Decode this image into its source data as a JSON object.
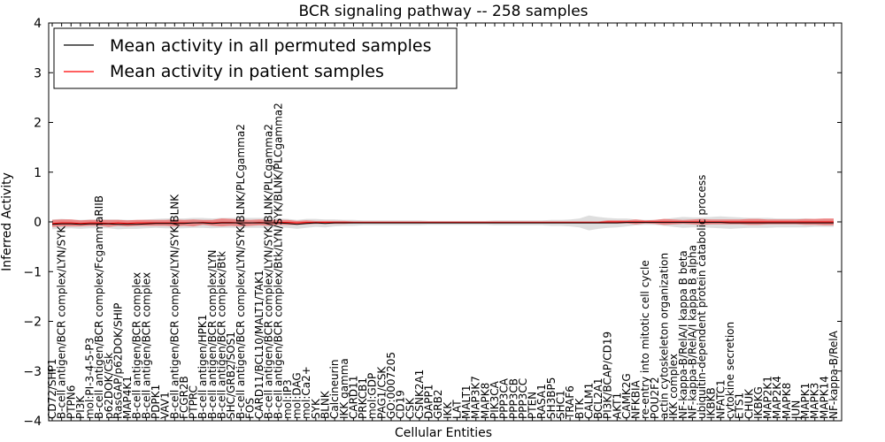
{
  "chart_data": {
    "type": "line",
    "title": "BCR signaling pathway -- 258 samples",
    "xlabel": "Cellular Entities",
    "ylabel": "Inferred Activity",
    "ylim": [
      -4,
      4
    ],
    "yticks": [
      -4,
      -3,
      -2,
      -1,
      0,
      1,
      2,
      3,
      4
    ],
    "grid": false,
    "legend_position": "upper-left",
    "categories": [
      "CD72/SHP1",
      "B-cell antigen/BCR complex/LYN/SYK",
      "PTPN6",
      "PI3K",
      "mol:PI-3-4-5-P3",
      "B-cell antigen/BCR complex/FcgammaRIIB",
      "p62DOK/Csk",
      "RasGAP/p62DOK/SHIP",
      "MAP4K1",
      "B-cell antigen/BCR complex",
      "B-cell antigen/BCR complex",
      "PDPK1",
      "VAV1",
      "B-cell antigen/BCR complex/LYN/SYK/BLNK",
      "FCGR2B",
      "PTPRC",
      "B-cell antigen/HPK1",
      "B-cell antigen/BCR complex/LYN",
      "B-cell antigen/BCR complex/Btk",
      "SHC/GRB2/SOS1",
      "B-cell antigen/BCR complex/LYN/SYK/BLNK/PLCgamma2",
      "FOS",
      "CARD11/BCL10/MALT1/TAK1",
      "B-cell antigen/BCR complex/LYN/SYK/BLNK/PLCgamma2",
      "B-cell antigen/BCR complex/Btk/LYN/SYK/BLNK/PLCgamma2",
      "mol:IP3",
      "mol:DAG",
      "mol:Ca2+",
      "SYK",
      "BLNK",
      "Calcineurin",
      "IKK gamma",
      "CARD11",
      "PRKCB1",
      "mol:GDP",
      "PAG1/CSK",
      "GO:0007205",
      "CD19",
      "CSK",
      "CSNK2A1",
      "DAPP1",
      "GRB2",
      "IKK",
      "LAT",
      "MALT1",
      "MAP3K7",
      "MAPK8",
      "PIK3CA",
      "PPP3CA",
      "PPP3CB",
      "PPP3CC",
      "PTEN",
      "RASA1",
      "SH3BP5",
      "SHC1",
      "TRAF6",
      "BTK",
      "CALM1",
      "BCL2A1",
      "PI3K/BCAP/CD19",
      "AKT1",
      "CAMK2G",
      "NFKBIA",
      "re-entry into mitotic cell cycle",
      "POU2F2",
      "actin cytoskeleton organization",
      "IKK complex",
      "NF-kappa-B/RelA/I kappa B beta",
      "NF-kappa-B/RelA/I kappa B alpha",
      "ubiquitin-dependent protein catabolic process",
      "IKBKB",
      "NFATC1",
      "cytokine secretion",
      "ETS1",
      "CHUK",
      "IKBKG",
      "MAP2K1",
      "MAP2K4",
      "MAPK8",
      "JUN",
      "MAPK1",
      "MAPK3",
      "MAPK14",
      "NF-kappa-B/RelA"
    ],
    "series": [
      {
        "name": "Mean activity in all permuted samples",
        "color": "#000000",
        "values": [
          -0.05,
          -0.04,
          -0.04,
          -0.05,
          -0.04,
          -0.04,
          -0.04,
          -0.05,
          -0.05,
          -0.05,
          -0.04,
          -0.03,
          -0.03,
          -0.03,
          -0.03,
          -0.02,
          -0.02,
          -0.03,
          -0.02,
          -0.02,
          -0.02,
          -0.02,
          -0.02,
          -0.02,
          -0.02,
          -0.03,
          -0.05,
          -0.03,
          -0.02,
          -0.03,
          -0.02,
          -0.02,
          -0.02,
          -0.02,
          -0.02,
          -0.02,
          -0.02,
          -0.02,
          -0.02,
          -0.02,
          -0.02,
          -0.02,
          -0.02,
          -0.02,
          -0.02,
          -0.02,
          -0.02,
          -0.02,
          -0.02,
          -0.02,
          -0.02,
          -0.02,
          -0.02,
          -0.02,
          -0.02,
          -0.02,
          -0.02,
          -0.02,
          -0.02,
          -0.02,
          -0.02,
          -0.01,
          -0.01,
          -0.01,
          -0.01,
          -0.01,
          -0.01,
          -0.01,
          -0.01,
          -0.01,
          -0.01,
          -0.01,
          -0.02,
          -0.02,
          -0.02,
          -0.02,
          -0.02,
          -0.02,
          -0.02,
          -0.02,
          -0.02,
          -0.02,
          -0.02,
          -0.02
        ],
        "band": [
          0.1,
          0.1,
          0.09,
          0.09,
          0.09,
          0.09,
          0.09,
          0.1,
          0.09,
          0.09,
          0.09,
          0.09,
          0.1,
          0.1,
          0.1,
          0.1,
          0.1,
          0.1,
          0.1,
          0.1,
          0.1,
          0.1,
          0.1,
          0.1,
          0.09,
          0.09,
          0.09,
          0.09,
          0.08,
          0.08,
          0.07,
          0.06,
          0.06,
          0.05,
          0.05,
          0.05,
          0.05,
          0.05,
          0.05,
          0.05,
          0.04,
          0.04,
          0.04,
          0.04,
          0.04,
          0.04,
          0.04,
          0.05,
          0.05,
          0.05,
          0.05,
          0.05,
          0.05,
          0.06,
          0.06,
          0.07,
          0.09,
          0.15,
          0.12,
          0.1,
          0.09,
          0.08,
          0.06,
          0.05,
          0.05,
          0.07,
          0.09,
          0.11,
          0.1,
          0.1,
          0.11,
          0.12,
          0.12,
          0.11,
          0.1,
          0.1,
          0.1,
          0.09,
          0.09,
          0.09,
          0.09,
          0.08,
          0.08,
          0.08
        ]
      },
      {
        "name": "Mean activity in patient samples",
        "color": "#ff0000",
        "values": [
          -0.03,
          -0.02,
          -0.02,
          -0.03,
          -0.02,
          -0.02,
          -0.03,
          -0.02,
          -0.03,
          -0.02,
          -0.02,
          -0.02,
          -0.02,
          -0.02,
          -0.02,
          -0.02,
          -0.01,
          -0.02,
          -0.01,
          -0.01,
          -0.02,
          -0.02,
          -0.01,
          -0.02,
          -0.01,
          -0.01,
          -0.02,
          -0.01,
          -0.01,
          -0.01,
          -0.01,
          -0.01,
          -0.01,
          -0.01,
          -0.01,
          -0.01,
          -0.01,
          -0.01,
          -0.01,
          -0.01,
          -0.01,
          -0.01,
          -0.01,
          -0.01,
          -0.01,
          -0.01,
          -0.01,
          -0.01,
          -0.01,
          -0.01,
          -0.01,
          -0.01,
          -0.01,
          -0.01,
          -0.01,
          -0.01,
          -0.01,
          -0.01,
          -0.01,
          0.0,
          0.0,
          0.0,
          0.0,
          0.0,
          0.0,
          0.0,
          0.0,
          0.0,
          0.0,
          0.0,
          0.0,
          0.0,
          0.0,
          0.0,
          0.0,
          0.0,
          0.0,
          0.0,
          0.0,
          0.0,
          0.0,
          0.0,
          0.0,
          0.0
        ],
        "band": [
          0.07,
          0.07,
          0.07,
          0.06,
          0.06,
          0.06,
          0.07,
          0.06,
          0.06,
          0.06,
          0.06,
          0.06,
          0.06,
          0.07,
          0.06,
          0.07,
          0.05,
          0.06,
          0.08,
          0.07,
          0.07,
          0.06,
          0.06,
          0.06,
          0.05,
          0.05,
          0.04,
          0.04,
          0.03,
          0.03,
          0.03,
          0.03,
          0.02,
          0.02,
          0.02,
          0.02,
          0.02,
          0.02,
          0.02,
          0.02,
          0.02,
          0.02,
          0.02,
          0.02,
          0.02,
          0.02,
          0.02,
          0.02,
          0.02,
          0.02,
          0.02,
          0.02,
          0.02,
          0.02,
          0.02,
          0.02,
          0.02,
          0.02,
          0.02,
          0.03,
          0.03,
          0.03,
          0.05,
          0.03,
          0.04,
          0.06,
          0.05,
          0.04,
          0.05,
          0.06,
          0.05,
          0.05,
          0.05,
          0.05,
          0.06,
          0.06,
          0.05,
          0.05,
          0.05,
          0.05,
          0.06,
          0.06,
          0.07,
          0.07
        ]
      }
    ],
    "bands_description": "shaded ranges around each mean line",
    "band_colors": {
      "permuted": "#c8c8c8",
      "patient": "#ee6a6a"
    }
  }
}
